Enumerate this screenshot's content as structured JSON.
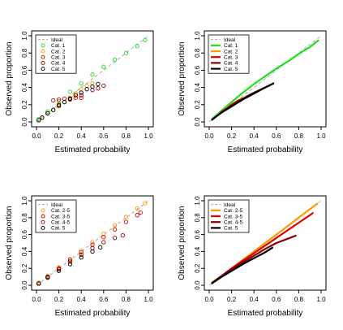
{
  "chart_data": [
    {
      "type": "scatter",
      "panel": "top-left",
      "markers": "open-circles",
      "xlabel": "Estimated probability",
      "ylabel": "Observed proportion",
      "xlim": [
        0,
        1
      ],
      "ylim": [
        0,
        1
      ],
      "xticks": [
        "0.0",
        "0.2",
        "0.4",
        "0.6",
        "0.8",
        "1.0"
      ],
      "yticks": [
        "0.0",
        "0.2",
        "0.4",
        "0.6",
        "0.8",
        "1.0"
      ],
      "grid": false,
      "legend_position": "top-left",
      "ideal_line": {
        "name": "Ideal",
        "color": "#aaaaaa",
        "style": "dashed",
        "points": [
          [
            0,
            0
          ],
          [
            1,
            1
          ]
        ]
      },
      "series": [
        {
          "name": "Cat. 1",
          "color": "#22dd22",
          "points": [
            [
              0.02,
              0.03
            ],
            [
              0.1,
              0.12
            ],
            [
              0.2,
              0.24
            ],
            [
              0.3,
              0.35
            ],
            [
              0.4,
              0.45
            ],
            [
              0.5,
              0.55
            ],
            [
              0.6,
              0.64
            ],
            [
              0.7,
              0.72
            ],
            [
              0.8,
              0.8
            ],
            [
              0.9,
              0.88
            ],
            [
              0.97,
              0.95
            ]
          ]
        },
        {
          "name": "Cat. 2",
          "color": "#ff9900",
          "points": [
            [
              0.05,
              0.05
            ],
            [
              0.1,
              0.1
            ],
            [
              0.15,
              0.14
            ],
            [
              0.2,
              0.18
            ],
            [
              0.25,
              0.23
            ],
            [
              0.3,
              0.28
            ],
            [
              0.35,
              0.33
            ],
            [
              0.4,
              0.38
            ],
            [
              0.45,
              0.42
            ],
            [
              0.5,
              0.45
            ]
          ]
        },
        {
          "name": "Cat. 3",
          "color": "#dd0000",
          "points": [
            [
              0.15,
              0.25
            ],
            [
              0.2,
              0.26
            ],
            [
              0.25,
              0.27
            ],
            [
              0.3,
              0.27
            ],
            [
              0.35,
              0.28
            ],
            [
              0.4,
              0.28
            ]
          ]
        },
        {
          "name": "Cat. 4",
          "color": "#880000",
          "points": [
            [
              0.1,
              0.1
            ],
            [
              0.2,
              0.2
            ],
            [
              0.3,
              0.26
            ],
            [
              0.4,
              0.31
            ],
            [
              0.5,
              0.37
            ],
            [
              0.55,
              0.39
            ],
            [
              0.6,
              0.42
            ]
          ]
        },
        {
          "name": "Cat. 5",
          "color": "#000000",
          "points": [
            [
              0.02,
              0.02
            ],
            [
              0.05,
              0.05
            ],
            [
              0.1,
              0.1
            ],
            [
              0.15,
              0.14
            ],
            [
              0.2,
              0.19
            ],
            [
              0.25,
              0.23
            ],
            [
              0.3,
              0.27
            ],
            [
              0.35,
              0.31
            ],
            [
              0.4,
              0.34
            ],
            [
              0.45,
              0.38
            ],
            [
              0.5,
              0.41
            ],
            [
              0.55,
              0.44
            ]
          ]
        }
      ]
    },
    {
      "type": "line",
      "panel": "top-right",
      "xlabel": "Estimated probability",
      "ylabel": "Observed proportion",
      "xlim": [
        0,
        1
      ],
      "ylim": [
        0,
        1
      ],
      "xticks": [
        "0.0",
        "0.2",
        "0.4",
        "0.6",
        "0.8",
        "1.0"
      ],
      "yticks": [
        "0.0",
        "0.2",
        "0.4",
        "0.6",
        "0.8",
        "1.0"
      ],
      "grid": false,
      "legend_position": "top-left",
      "ideal_line": {
        "name": "Ideal",
        "color": "#aaaaaa",
        "style": "dashed",
        "points": [
          [
            0,
            0
          ],
          [
            1,
            1
          ]
        ]
      },
      "series": [
        {
          "name": "Cat. 1",
          "color": "#22dd22",
          "points": [
            [
              0.02,
              0.03
            ],
            [
              0.1,
              0.12
            ],
            [
              0.2,
              0.23
            ],
            [
              0.3,
              0.34
            ],
            [
              0.4,
              0.44
            ],
            [
              0.5,
              0.53
            ],
            [
              0.6,
              0.62
            ],
            [
              0.7,
              0.7
            ],
            [
              0.8,
              0.79
            ],
            [
              0.9,
              0.87
            ],
            [
              0.98,
              0.95
            ]
          ]
        },
        {
          "name": "Cat. 2",
          "color": "#ff9900",
          "points": [
            [
              0.05,
              0.05
            ],
            [
              0.1,
              0.1
            ],
            [
              0.15,
              0.15
            ],
            [
              0.2,
              0.2
            ],
            [
              0.25,
              0.24
            ],
            [
              0.3,
              0.28
            ]
          ]
        },
        {
          "name": "Cat. 3",
          "color": "#dd0000",
          "points": [
            [
              0.1,
              0.11
            ],
            [
              0.15,
              0.15
            ],
            [
              0.2,
              0.2
            ],
            [
              0.25,
              0.24
            ],
            [
              0.3,
              0.27
            ]
          ]
        },
        {
          "name": "Cat. 4",
          "color": "#880000",
          "points": [
            [
              0.1,
              0.1
            ],
            [
              0.2,
              0.19
            ],
            [
              0.3,
              0.27
            ],
            [
              0.4,
              0.34
            ],
            [
              0.5,
              0.4
            ],
            [
              0.55,
              0.43
            ]
          ]
        },
        {
          "name": "Cat. 5",
          "color": "#000000",
          "points": [
            [
              0.02,
              0.02
            ],
            [
              0.1,
              0.1
            ],
            [
              0.2,
              0.18
            ],
            [
              0.3,
              0.26
            ],
            [
              0.4,
              0.33
            ],
            [
              0.5,
              0.4
            ],
            [
              0.58,
              0.45
            ]
          ]
        }
      ]
    },
    {
      "type": "scatter",
      "panel": "bottom-left",
      "markers": "open-circles",
      "xlabel": "Estimated probability",
      "ylabel": "Observed proportion",
      "xlim": [
        0,
        1
      ],
      "ylim": [
        0,
        1
      ],
      "xticks": [
        "0.0",
        "0.2",
        "0.4",
        "0.6",
        "0.8",
        "1.0"
      ],
      "yticks": [
        "0.0",
        "0.2",
        "0.4",
        "0.6",
        "0.8",
        "1.0"
      ],
      "grid": false,
      "legend_position": "top-left",
      "ideal_line": {
        "name": "Ideal",
        "color": "#aaaaaa",
        "style": "dashed",
        "points": [
          [
            0,
            0
          ],
          [
            1,
            1
          ]
        ]
      },
      "series": [
        {
          "name": "Cat. 2-5",
          "color": "#ff9900",
          "points": [
            [
              0.02,
              0.03
            ],
            [
              0.1,
              0.11
            ],
            [
              0.2,
              0.21
            ],
            [
              0.3,
              0.31
            ],
            [
              0.4,
              0.41
            ],
            [
              0.5,
              0.51
            ],
            [
              0.6,
              0.61
            ],
            [
              0.7,
              0.71
            ],
            [
              0.8,
              0.81
            ],
            [
              0.9,
              0.91
            ],
            [
              0.97,
              0.97
            ]
          ]
        },
        {
          "name": "Cat. 3-5",
          "color": "#dd0000",
          "points": [
            [
              0.02,
              0.02
            ],
            [
              0.1,
              0.1
            ],
            [
              0.2,
              0.2
            ],
            [
              0.3,
              0.3
            ],
            [
              0.4,
              0.39
            ],
            [
              0.5,
              0.48
            ],
            [
              0.6,
              0.57
            ],
            [
              0.7,
              0.66
            ],
            [
              0.8,
              0.75
            ],
            [
              0.9,
              0.83
            ],
            [
              0.93,
              0.86
            ]
          ]
        },
        {
          "name": "Cat. 4-5",
          "color": "#880000",
          "points": [
            [
              0.02,
              0.02
            ],
            [
              0.1,
              0.1
            ],
            [
              0.2,
              0.19
            ],
            [
              0.3,
              0.28
            ],
            [
              0.4,
              0.36
            ],
            [
              0.5,
              0.44
            ],
            [
              0.6,
              0.51
            ],
            [
              0.7,
              0.56
            ],
            [
              0.77,
              0.59
            ]
          ]
        },
        {
          "name": "Cat. 5",
          "color": "#000000",
          "points": [
            [
              0.02,
              0.02
            ],
            [
              0.1,
              0.09
            ],
            [
              0.2,
              0.17
            ],
            [
              0.3,
              0.25
            ],
            [
              0.4,
              0.33
            ],
            [
              0.5,
              0.4
            ],
            [
              0.57,
              0.45
            ]
          ]
        }
      ]
    },
    {
      "type": "line",
      "panel": "bottom-right",
      "xlabel": "Estimated probability",
      "ylabel": "Observed proportion",
      "xlim": [
        0,
        1
      ],
      "ylim": [
        0,
        1
      ],
      "xticks": [
        "0.0",
        "0.2",
        "0.4",
        "0.6",
        "0.8",
        "1.0"
      ],
      "yticks": [
        "0.0",
        "0.2",
        "0.4",
        "0.6",
        "0.8",
        "1.0"
      ],
      "grid": false,
      "legend_position": "top-left",
      "ideal_line": {
        "name": "Ideal",
        "color": "#aaaaaa",
        "style": "dashed",
        "points": [
          [
            0,
            0
          ],
          [
            1,
            1
          ]
        ]
      },
      "series": [
        {
          "name": "Cat. 2-5",
          "color": "#ff9900",
          "points": [
            [
              0.02,
              0.03
            ],
            [
              0.1,
              0.1
            ],
            [
              0.2,
              0.2
            ],
            [
              0.3,
              0.3
            ],
            [
              0.4,
              0.4
            ],
            [
              0.5,
              0.5
            ],
            [
              0.6,
              0.6
            ],
            [
              0.7,
              0.7
            ],
            [
              0.8,
              0.8
            ],
            [
              0.9,
              0.9
            ],
            [
              0.97,
              0.97
            ]
          ]
        },
        {
          "name": "Cat. 3-5",
          "color": "#dd0000",
          "points": [
            [
              0.02,
              0.02
            ],
            [
              0.1,
              0.1
            ],
            [
              0.2,
              0.2
            ],
            [
              0.3,
              0.29
            ],
            [
              0.4,
              0.38
            ],
            [
              0.5,
              0.47
            ],
            [
              0.6,
              0.56
            ],
            [
              0.7,
              0.65
            ],
            [
              0.8,
              0.74
            ],
            [
              0.9,
              0.83
            ],
            [
              0.93,
              0.86
            ]
          ]
        },
        {
          "name": "Cat. 4-5",
          "color": "#880000",
          "points": [
            [
              0.02,
              0.02
            ],
            [
              0.1,
              0.1
            ],
            [
              0.2,
              0.19
            ],
            [
              0.3,
              0.27
            ],
            [
              0.4,
              0.35
            ],
            [
              0.5,
              0.43
            ],
            [
              0.6,
              0.5
            ],
            [
              0.7,
              0.55
            ],
            [
              0.78,
              0.59
            ]
          ]
        },
        {
          "name": "Cat. 5",
          "color": "#000000",
          "points": [
            [
              0.02,
              0.02
            ],
            [
              0.1,
              0.09
            ],
            [
              0.2,
              0.17
            ],
            [
              0.3,
              0.25
            ],
            [
              0.4,
              0.32
            ],
            [
              0.5,
              0.39
            ],
            [
              0.57,
              0.45
            ]
          ]
        }
      ]
    }
  ]
}
